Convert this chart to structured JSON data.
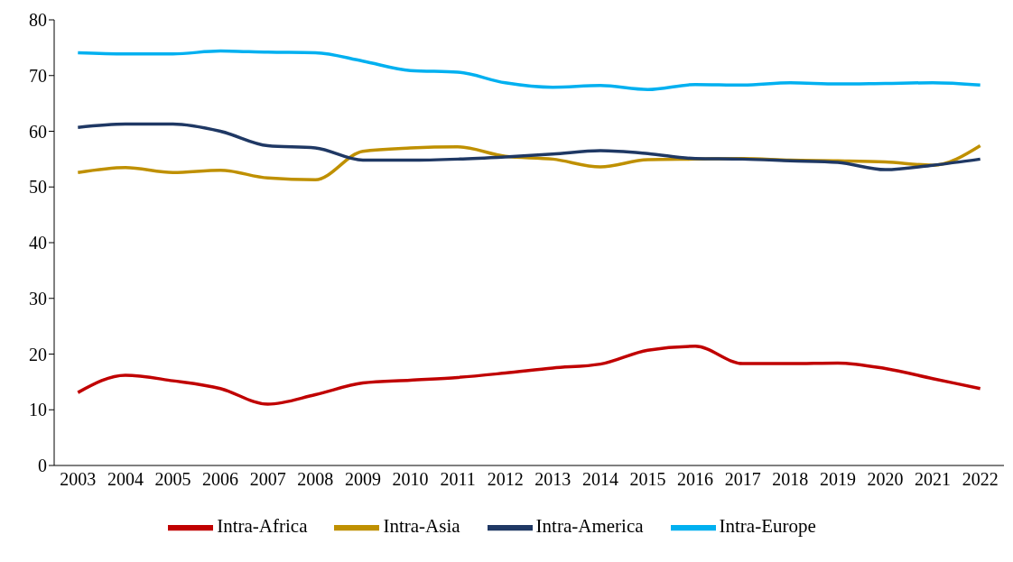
{
  "chart_data": {
    "type": "line",
    "categories": [
      "2003",
      "2004",
      "2005",
      "2006",
      "2007",
      "2008",
      "2009",
      "2010",
      "2011",
      "2012",
      "2013",
      "2014",
      "2015",
      "2016",
      "2017",
      "2018",
      "2019",
      "2020",
      "2021",
      "2022"
    ],
    "series": [
      {
        "name": "Intra-Africa",
        "color": "#c00000",
        "values": [
          13.1,
          16.2,
          15.2,
          13.8,
          11.0,
          12.7,
          14.8,
          15.3,
          15.8,
          16.6,
          17.5,
          18.2,
          20.7,
          21.4,
          18.3,
          18.3,
          18.4,
          17.4,
          15.6,
          13.8
        ]
      },
      {
        "name": "Intra-Asia",
        "color": "#bf9000",
        "values": [
          52.6,
          53.5,
          52.6,
          53.0,
          51.6,
          51.3,
          56.4,
          57.0,
          57.2,
          55.5,
          55.0,
          53.6,
          54.9,
          55.0,
          55.1,
          54.8,
          54.7,
          54.5,
          53.9,
          57.4
        ]
      },
      {
        "name": "Intra-America",
        "color": "#1f3864",
        "values": [
          60.7,
          61.3,
          61.3,
          60.0,
          57.4,
          57.0,
          54.8,
          54.8,
          55.0,
          55.4,
          55.9,
          56.5,
          56.0,
          55.1,
          55.0,
          54.7,
          54.4,
          53.1,
          53.9,
          55.0
        ]
      },
      {
        "name": "Intra-Europe",
        "color": "#00b0f0",
        "values": [
          74.1,
          73.9,
          73.9,
          74.4,
          74.2,
          74.1,
          72.6,
          70.9,
          70.6,
          68.7,
          67.9,
          68.2,
          67.5,
          68.4,
          68.3,
          68.7,
          68.5,
          68.6,
          68.7,
          68.3
        ]
      }
    ],
    "ylim": [
      0,
      80
    ],
    "yticks": [
      0,
      10,
      20,
      30,
      40,
      50,
      60,
      70,
      80
    ],
    "grid": false,
    "legend": "bottom",
    "marker": "none",
    "line_style": "solid"
  }
}
